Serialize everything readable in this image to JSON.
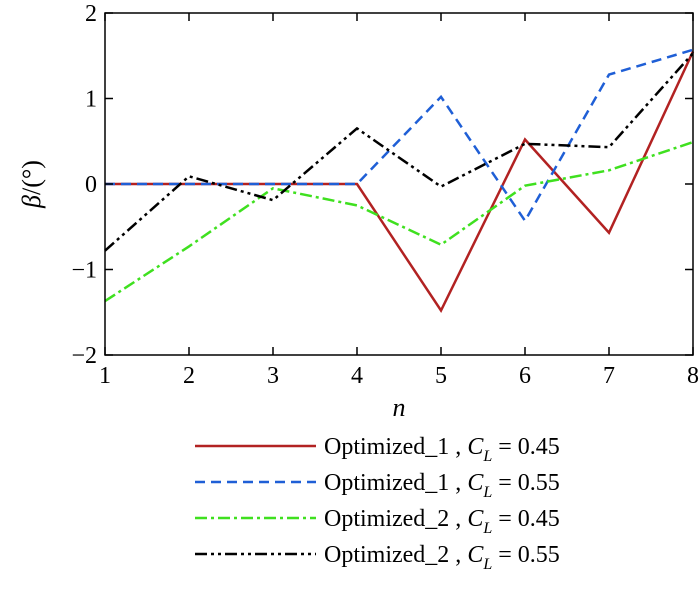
{
  "chart_data": {
    "type": "line",
    "title": "",
    "xlabel": "n",
    "ylabel": "β/(°)",
    "ylabel_symbol": "β",
    "ylabel_unit": "/(°)",
    "xlim": [
      1,
      8
    ],
    "ylim": [
      -2,
      2
    ],
    "x_ticks": [
      1,
      2,
      3,
      4,
      5,
      6,
      7,
      8
    ],
    "y_ticks": [
      -2,
      -1,
      0,
      1,
      2
    ],
    "x_tick_labels": [
      "1",
      "2",
      "3",
      "4",
      "5",
      "6",
      "7",
      "8"
    ],
    "y_tick_labels": [
      "−2",
      "−1",
      "0",
      "1",
      "2"
    ],
    "grid": false,
    "legend_position": "bottom",
    "x": [
      1,
      2,
      3,
      4,
      5,
      6,
      7,
      8
    ],
    "series": [
      {
        "name": "Optimized_1 , CL = 0.45",
        "label_main": "Optimized_1 , ",
        "label_var": "C",
        "label_sub": "L",
        "label_eq": " = 0.45",
        "color": "#b22222",
        "dash": "solid",
        "values": [
          0,
          0,
          0,
          0,
          -1.48,
          0.52,
          -0.57,
          1.55
        ]
      },
      {
        "name": "Optimized_1 , CL = 0.55",
        "label_main": "Optimized_1 , ",
        "label_var": "C",
        "label_sub": "L",
        "label_eq": " = 0.55",
        "color": "#1f5fd6",
        "dash": "dashed",
        "values": [
          0,
          0,
          0,
          0,
          1.02,
          -0.43,
          1.28,
          1.57
        ]
      },
      {
        "name": "Optimized_2 , CL = 0.45",
        "label_main": "Optimized_2 , ",
        "label_var": "C",
        "label_sub": "L",
        "label_eq": " = 0.45",
        "color": "#3fe01f",
        "dash": "dashdot",
        "values": [
          -1.37,
          -0.73,
          -0.05,
          -0.25,
          -0.71,
          -0.02,
          0.16,
          0.49
        ]
      },
      {
        "name": "Optimized_2 , CL = 0.55",
        "label_main": "Optimized_2 , ",
        "label_var": "C",
        "label_sub": "L",
        "label_eq": " = 0.55",
        "color": "#000000",
        "dash": "dashdotdot",
        "values": [
          -0.78,
          0.09,
          -0.19,
          0.65,
          -0.03,
          0.47,
          0.43,
          1.53
        ]
      }
    ]
  }
}
